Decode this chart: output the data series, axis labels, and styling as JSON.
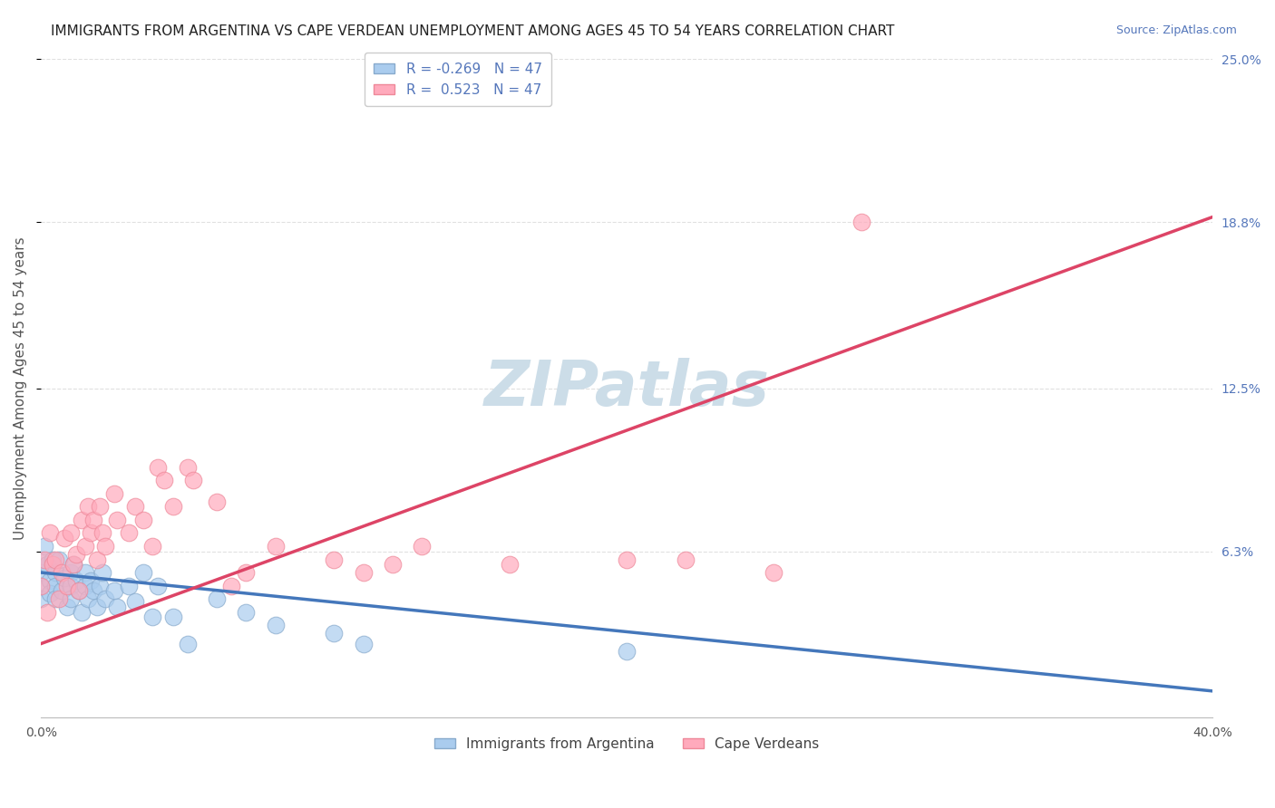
{
  "title": "IMMIGRANTS FROM ARGENTINA VS CAPE VERDEAN UNEMPLOYMENT AMONG AGES 45 TO 54 YEARS CORRELATION CHART",
  "source": "Source: ZipAtlas.com",
  "ylabel": "Unemployment Among Ages 45 to 54 years",
  "xlim": [
    0.0,
    0.4
  ],
  "ylim": [
    0.0,
    0.25
  ],
  "xtick_positions": [
    0.0,
    0.4
  ],
  "xtick_labels": [
    "0.0%",
    "40.0%"
  ],
  "ytick_values": [
    0.063,
    0.125,
    0.188,
    0.25
  ],
  "ytick_labels": [
    "6.3%",
    "12.5%",
    "18.8%",
    "25.0%"
  ],
  "r_argentina": -0.269,
  "r_capeverde": 0.523,
  "n": 47,
  "argentina_scatter_color": "#aaccee",
  "argentina_edge_color": "#88aacc",
  "capeverde_scatter_color": "#ffaabc",
  "capeverde_edge_color": "#ee8899",
  "argentina_line_color": "#4477bb",
  "capeverde_line_color": "#dd4466",
  "watermark_text": "ZIPatlas",
  "watermark_color": "#ccdde8",
  "scatter_argentina": [
    [
      0.0,
      0.06
    ],
    [
      0.0,
      0.055
    ],
    [
      0.0,
      0.05
    ],
    [
      0.0,
      0.045
    ],
    [
      0.001,
      0.065
    ],
    [
      0.002,
      0.058
    ],
    [
      0.003,
      0.052
    ],
    [
      0.003,
      0.047
    ],
    [
      0.004,
      0.06
    ],
    [
      0.005,
      0.055
    ],
    [
      0.005,
      0.05
    ],
    [
      0.005,
      0.045
    ],
    [
      0.006,
      0.06
    ],
    [
      0.007,
      0.048
    ],
    [
      0.008,
      0.053
    ],
    [
      0.009,
      0.042
    ],
    [
      0.01,
      0.055
    ],
    [
      0.01,
      0.05
    ],
    [
      0.01,
      0.045
    ],
    [
      0.011,
      0.058
    ],
    [
      0.012,
      0.052
    ],
    [
      0.013,
      0.048
    ],
    [
      0.014,
      0.04
    ],
    [
      0.015,
      0.055
    ],
    [
      0.015,
      0.05
    ],
    [
      0.016,
      0.045
    ],
    [
      0.017,
      0.052
    ],
    [
      0.018,
      0.048
    ],
    [
      0.019,
      0.042
    ],
    [
      0.02,
      0.05
    ],
    [
      0.021,
      0.055
    ],
    [
      0.022,
      0.045
    ],
    [
      0.025,
      0.048
    ],
    [
      0.026,
      0.042
    ],
    [
      0.03,
      0.05
    ],
    [
      0.032,
      0.044
    ],
    [
      0.035,
      0.055
    ],
    [
      0.038,
      0.038
    ],
    [
      0.04,
      0.05
    ],
    [
      0.045,
      0.038
    ],
    [
      0.05,
      0.028
    ],
    [
      0.06,
      0.045
    ],
    [
      0.07,
      0.04
    ],
    [
      0.08,
      0.035
    ],
    [
      0.1,
      0.032
    ],
    [
      0.11,
      0.028
    ],
    [
      0.2,
      0.025
    ]
  ],
  "scatter_capeverde": [
    [
      0.0,
      0.05
    ],
    [
      0.001,
      0.06
    ],
    [
      0.002,
      0.04
    ],
    [
      0.003,
      0.07
    ],
    [
      0.004,
      0.058
    ],
    [
      0.005,
      0.06
    ],
    [
      0.006,
      0.045
    ],
    [
      0.007,
      0.055
    ],
    [
      0.008,
      0.068
    ],
    [
      0.009,
      0.05
    ],
    [
      0.01,
      0.07
    ],
    [
      0.011,
      0.058
    ],
    [
      0.012,
      0.062
    ],
    [
      0.013,
      0.048
    ],
    [
      0.014,
      0.075
    ],
    [
      0.015,
      0.065
    ],
    [
      0.016,
      0.08
    ],
    [
      0.017,
      0.07
    ],
    [
      0.018,
      0.075
    ],
    [
      0.019,
      0.06
    ],
    [
      0.02,
      0.08
    ],
    [
      0.021,
      0.07
    ],
    [
      0.022,
      0.065
    ],
    [
      0.025,
      0.085
    ],
    [
      0.026,
      0.075
    ],
    [
      0.03,
      0.07
    ],
    [
      0.032,
      0.08
    ],
    [
      0.035,
      0.075
    ],
    [
      0.038,
      0.065
    ],
    [
      0.04,
      0.095
    ],
    [
      0.042,
      0.09
    ],
    [
      0.045,
      0.08
    ],
    [
      0.05,
      0.095
    ],
    [
      0.052,
      0.09
    ],
    [
      0.06,
      0.082
    ],
    [
      0.065,
      0.05
    ],
    [
      0.07,
      0.055
    ],
    [
      0.08,
      0.065
    ],
    [
      0.1,
      0.06
    ],
    [
      0.11,
      0.055
    ],
    [
      0.12,
      0.058
    ],
    [
      0.13,
      0.065
    ],
    [
      0.16,
      0.058
    ],
    [
      0.2,
      0.06
    ],
    [
      0.22,
      0.06
    ],
    [
      0.25,
      0.055
    ],
    [
      0.28,
      0.188
    ]
  ],
  "background_color": "#ffffff",
  "grid_color": "#dddddd",
  "title_fontsize": 11,
  "axis_label_fontsize": 11,
  "tick_fontsize": 10,
  "legend_fontsize": 11,
  "watermark_fontsize": 50,
  "tick_label_color": "#5577bb",
  "arg_line_start_y": 0.055,
  "arg_line_end_y": 0.01,
  "cv_line_start_y": 0.028,
  "cv_line_end_y": 0.19
}
